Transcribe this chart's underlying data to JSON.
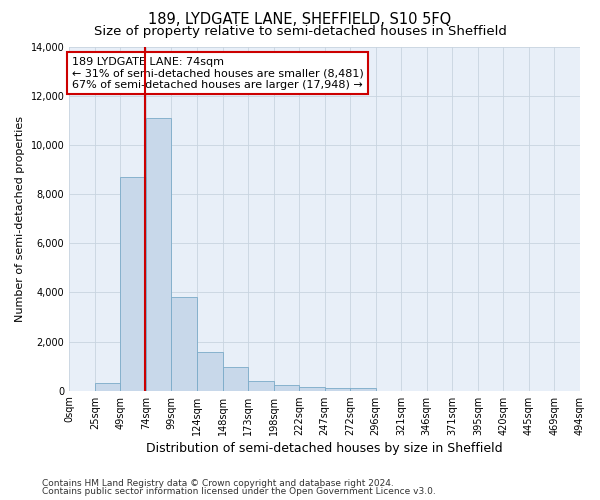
{
  "title": "189, LYDGATE LANE, SHEFFIELD, S10 5FQ",
  "subtitle": "Size of property relative to semi-detached houses in Sheffield",
  "xlabel": "Distribution of semi-detached houses by size in Sheffield",
  "ylabel": "Number of semi-detached properties",
  "footnote1": "Contains HM Land Registry data © Crown copyright and database right 2024.",
  "footnote2": "Contains public sector information licensed under the Open Government Licence v3.0.",
  "annotation_title": "189 LYDGATE LANE: 74sqm",
  "annotation_line1": "← 31% of semi-detached houses are smaller (8,481)",
  "annotation_line2": "67% of semi-detached houses are larger (17,948) →",
  "bar_heights": [
    0,
    320,
    8700,
    11100,
    3800,
    1560,
    950,
    380,
    220,
    160,
    100,
    120,
    0,
    0,
    0,
    0,
    0,
    0,
    0,
    0
  ],
  "bin_edges": [
    0,
    25,
    50,
    75,
    100,
    125,
    150,
    175,
    200,
    225,
    250,
    275,
    300,
    325,
    350,
    375,
    400,
    425,
    450,
    475,
    500
  ],
  "bar_color": "#c8d8ea",
  "bar_edge_color": "#7aaac8",
  "vline_color": "#cc0000",
  "vline_x": 74,
  "ylim": [
    0,
    14000
  ],
  "yticks": [
    0,
    2000,
    4000,
    6000,
    8000,
    10000,
    12000,
    14000
  ],
  "xtick_labels": [
    "0sqm",
    "25sqm",
    "49sqm",
    "74sqm",
    "99sqm",
    "124sqm",
    "148sqm",
    "173sqm",
    "198sqm",
    "222sqm",
    "247sqm",
    "272sqm",
    "296sqm",
    "321sqm",
    "346sqm",
    "371sqm",
    "395sqm",
    "420sqm",
    "445sqm",
    "469sqm",
    "494sqm"
  ],
  "grid_color": "#c8d4e0",
  "background_color": "#e8eff8",
  "annotation_box_edge": "#cc0000",
  "title_fontsize": 10.5,
  "subtitle_fontsize": 9.5,
  "xlabel_fontsize": 9,
  "ylabel_fontsize": 8,
  "tick_fontsize": 7,
  "annotation_fontsize": 8,
  "footnote_fontsize": 6.5
}
